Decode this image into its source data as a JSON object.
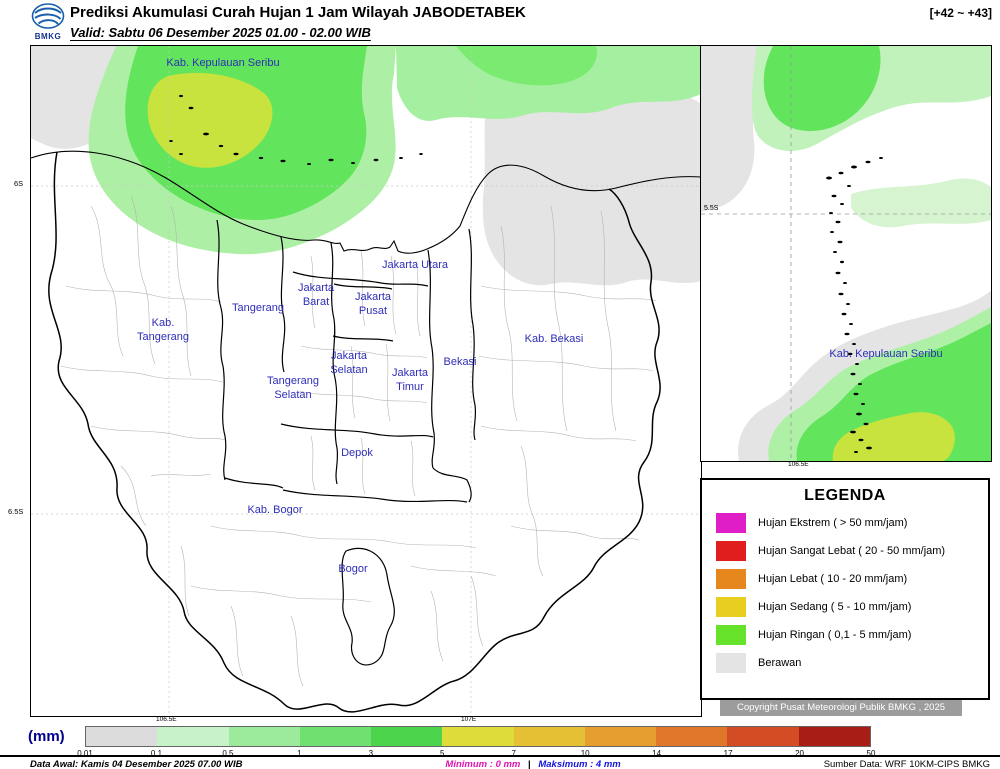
{
  "header": {
    "logo_text": "BMKG",
    "title": "Prediksi Akumulasi Curah Hujan 1 Jam Wilayah JABODETABEK",
    "valid": "Valid: Sabtu 06 Desember 2025 01.00 - 02.00 WIB",
    "frame_range": "[+42 ~ +43]"
  },
  "main_map": {
    "labels": {
      "kepulauan_seribu": "Kab. Kepulauan Seribu",
      "jakarta_utara": "Jakarta Utara",
      "jakarta_barat": "Jakarta Barat",
      "jakarta_pusat": "Jakarta Pusat",
      "tangerang": "Tangerang",
      "kab_tangerang": "Kab. Tangerang",
      "jakarta_selatan": "Jakarta Selatan",
      "tangerang_selatan": "Tangerang Selatan",
      "jakarta_timur": "Jakarta Timur",
      "bekasi": "Bekasi",
      "kab_bekasi": "Kab. Bekasi",
      "depok": "Depok",
      "kab_bogor": "Kab. Bogor",
      "bogor": "Bogor"
    },
    "axis": {
      "lat_6s": "6S",
      "lat_65s": "6.5S",
      "lon_1065e": "106.5E",
      "lon_107e": "107E"
    }
  },
  "inset_map": {
    "label": "Kab. Kepulauan Seribu",
    "axis": {
      "lat_55s": "5.5S",
      "lon_1065e": "106.5E"
    }
  },
  "legend": {
    "title": "LEGENDA",
    "items": [
      {
        "color": "#e01ec8",
        "label": "Hujan Ekstrem ( > 50 mm/jam)"
      },
      {
        "color": "#e01e1e",
        "label": "Hujan Sangat Lebat ( 20 - 50 mm/jam)"
      },
      {
        "color": "#e6871e",
        "label": "Hujan Lebat ( 10 - 20 mm/jam)"
      },
      {
        "color": "#e8ce20",
        "label": "Hujan Sedang ( 5 - 10 mm/jam)"
      },
      {
        "color": "#66e22a",
        "label": "Hujan Ringan ( 0,1 - 5 mm/jam)"
      },
      {
        "color": "#e4e4e4",
        "label": "Berawan"
      }
    ]
  },
  "copyright": "Copyright Pusat Meteorologi Publik BMKG , 2025",
  "colorbar": {
    "unit": "(mm)",
    "ticks": [
      "0.01",
      "0.1",
      "0.5",
      "1",
      "3",
      "5",
      "7",
      "10",
      "14",
      "17",
      "20",
      "50"
    ],
    "colors": [
      "#dcdcdc",
      "#c8f2c8",
      "#9ceb9c",
      "#70e070",
      "#4cd44c",
      "#dedc3a",
      "#e6c034",
      "#e69e2e",
      "#e0762a",
      "#d44c24",
      "#a81e16"
    ]
  },
  "footer": {
    "data_awal": "Data Awal: Kamis 04 Desember 2025 07.00 WIB",
    "minimum_label": "Minimum :",
    "minimum_value": "0 mm",
    "separator": "|",
    "maksimum_label": "Maksimum :",
    "maksimum_value": "4 mm",
    "sumber": "Sumber Data: WRF 10KM-CIPS BMKG"
  }
}
